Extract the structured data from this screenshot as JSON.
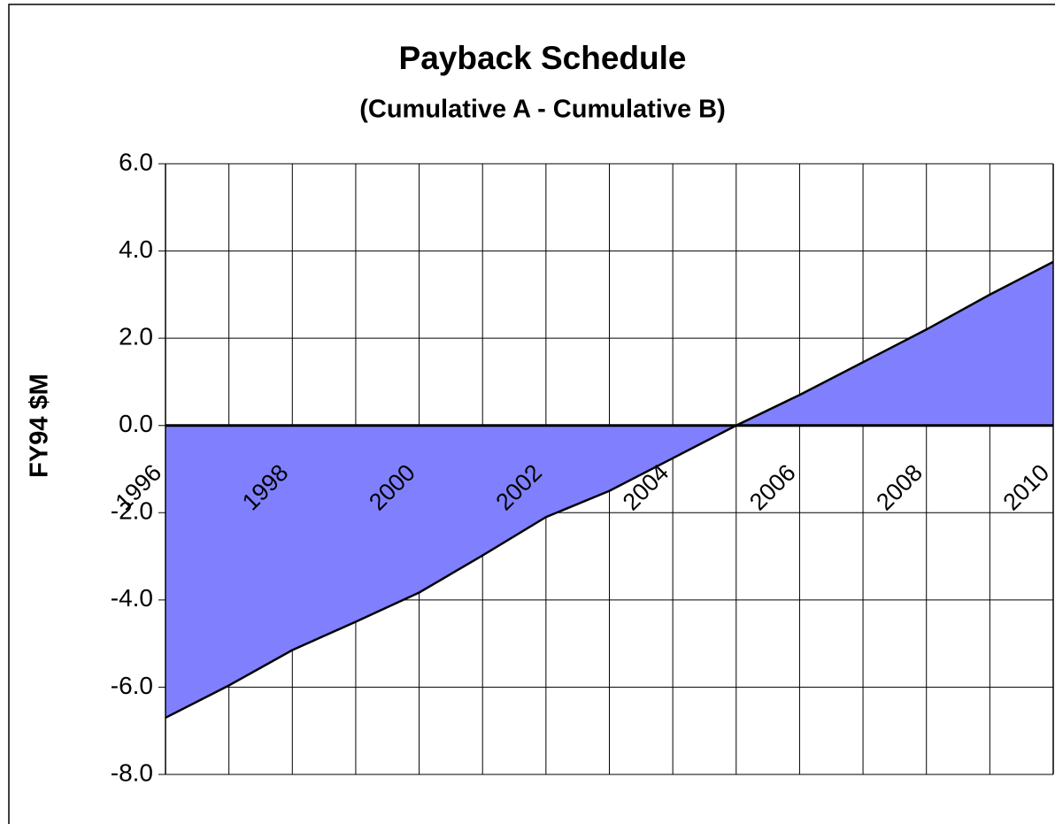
{
  "chart_data": {
    "type": "area",
    "title": "Payback Schedule",
    "subtitle": "(Cumulative A - Cumulative B)",
    "ylabel": "FY94 $M",
    "categories": [
      "1996",
      null,
      "1998",
      null,
      "2000",
      null,
      "2002",
      null,
      "2004",
      null,
      "2006",
      null,
      "2008",
      null,
      "2010"
    ],
    "values": [
      -6.7,
      -5.96,
      -5.15,
      -4.5,
      -3.83,
      -2.98,
      -2.1,
      -1.5,
      -0.75,
      0.0,
      0.7,
      1.45,
      2.2,
      3.0,
      3.75
    ],
    "color": "#8080ff",
    "ylim": [
      -8,
      6
    ],
    "yticks": [
      {
        "value": -8,
        "label": "-8.0"
      },
      {
        "value": -6,
        "label": "-6.0"
      },
      {
        "value": -4,
        "label": "-4.0"
      },
      {
        "value": -2,
        "label": "-2.0"
      },
      {
        "value": 0,
        "label": "0.0"
      },
      {
        "value": 2,
        "label": "2.0"
      },
      {
        "value": 4,
        "label": "4.0"
      },
      {
        "value": 6,
        "label": "6.0"
      }
    ],
    "grid": true
  }
}
